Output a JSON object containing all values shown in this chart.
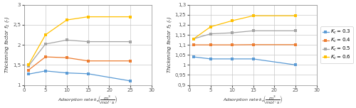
{
  "left": {
    "x": [
      1,
      5,
      10,
      15,
      25
    ],
    "series": {
      "K_c=0.3": [
        1.27,
        1.35,
        1.3,
        1.28,
        1.1
      ],
      "K_c=0.4": [
        1.37,
        1.7,
        1.68,
        1.6,
        1.6
      ],
      "K_c=0.5": [
        1.47,
        2.02,
        2.12,
        2.08,
        2.08
      ],
      "K_c=0.6": [
        1.5,
        2.25,
        2.62,
        2.7,
        2.7
      ]
    },
    "colors": {
      "K_c=0.3": "#5b9bd5",
      "K_c=0.4": "#ed7d31",
      "K_c=0.5": "#a5a5a5",
      "K_c=0.6": "#ffc000"
    },
    "ylabel": "Thickening factor $f_2$ (-)",
    "ylim": [
      1.0,
      3.0
    ],
    "yticks": [
      1.0,
      1.5,
      2.0,
      2.5,
      3.0
    ],
    "ytick_labels": [
      "1",
      "1,5",
      "2",
      "2,5",
      "3"
    ],
    "xlim": [
      0,
      30
    ],
    "xticks": [
      0,
      5,
      10,
      15,
      20,
      25,
      30
    ]
  },
  "right": {
    "x": [
      1,
      5,
      10,
      15,
      25
    ],
    "series": {
      "K_c=0.3": [
        1.04,
        1.03,
        1.03,
        1.03,
        1.0
      ],
      "K_c=0.4": [
        1.1,
        1.1,
        1.1,
        1.101,
        1.101
      ],
      "K_c=0.5": [
        1.13,
        1.155,
        1.16,
        1.17,
        1.17
      ],
      "K_c=0.6": [
        1.13,
        1.19,
        1.22,
        1.245,
        1.245
      ]
    },
    "colors": {
      "K_c=0.3": "#5b9bd5",
      "K_c=0.4": "#ed7d31",
      "K_c=0.5": "#a5a5a5",
      "K_c=0.6": "#ffc000"
    },
    "ylabel": "Thickening factor $f_3$ (-)",
    "ylim": [
      0.9,
      1.3
    ],
    "yticks": [
      0.9,
      0.95,
      1.0,
      1.05,
      1.1,
      1.15,
      1.2,
      1.25,
      1.3
    ],
    "ytick_labels": [
      "0,9",
      "0,95",
      "1",
      "1,05",
      "1,1",
      "1,15",
      "1,2",
      "1,25",
      "1,3"
    ],
    "xlim": [
      0,
      30
    ],
    "xticks": [
      0,
      5,
      10,
      15,
      20,
      25,
      30
    ],
    "legend": {
      "K_c=0.3": "$K_c = 0.3$",
      "K_c=0.4": "$K_c = 0.4$",
      "K_c=0.5": "$K_c = 0.5$",
      "K_c=0.6": "$K_c = 0.6$"
    }
  },
  "background_color": "#ffffff",
  "grid_color": "#c8c8c8",
  "tick_color": "#555555",
  "spine_color": "#888888"
}
